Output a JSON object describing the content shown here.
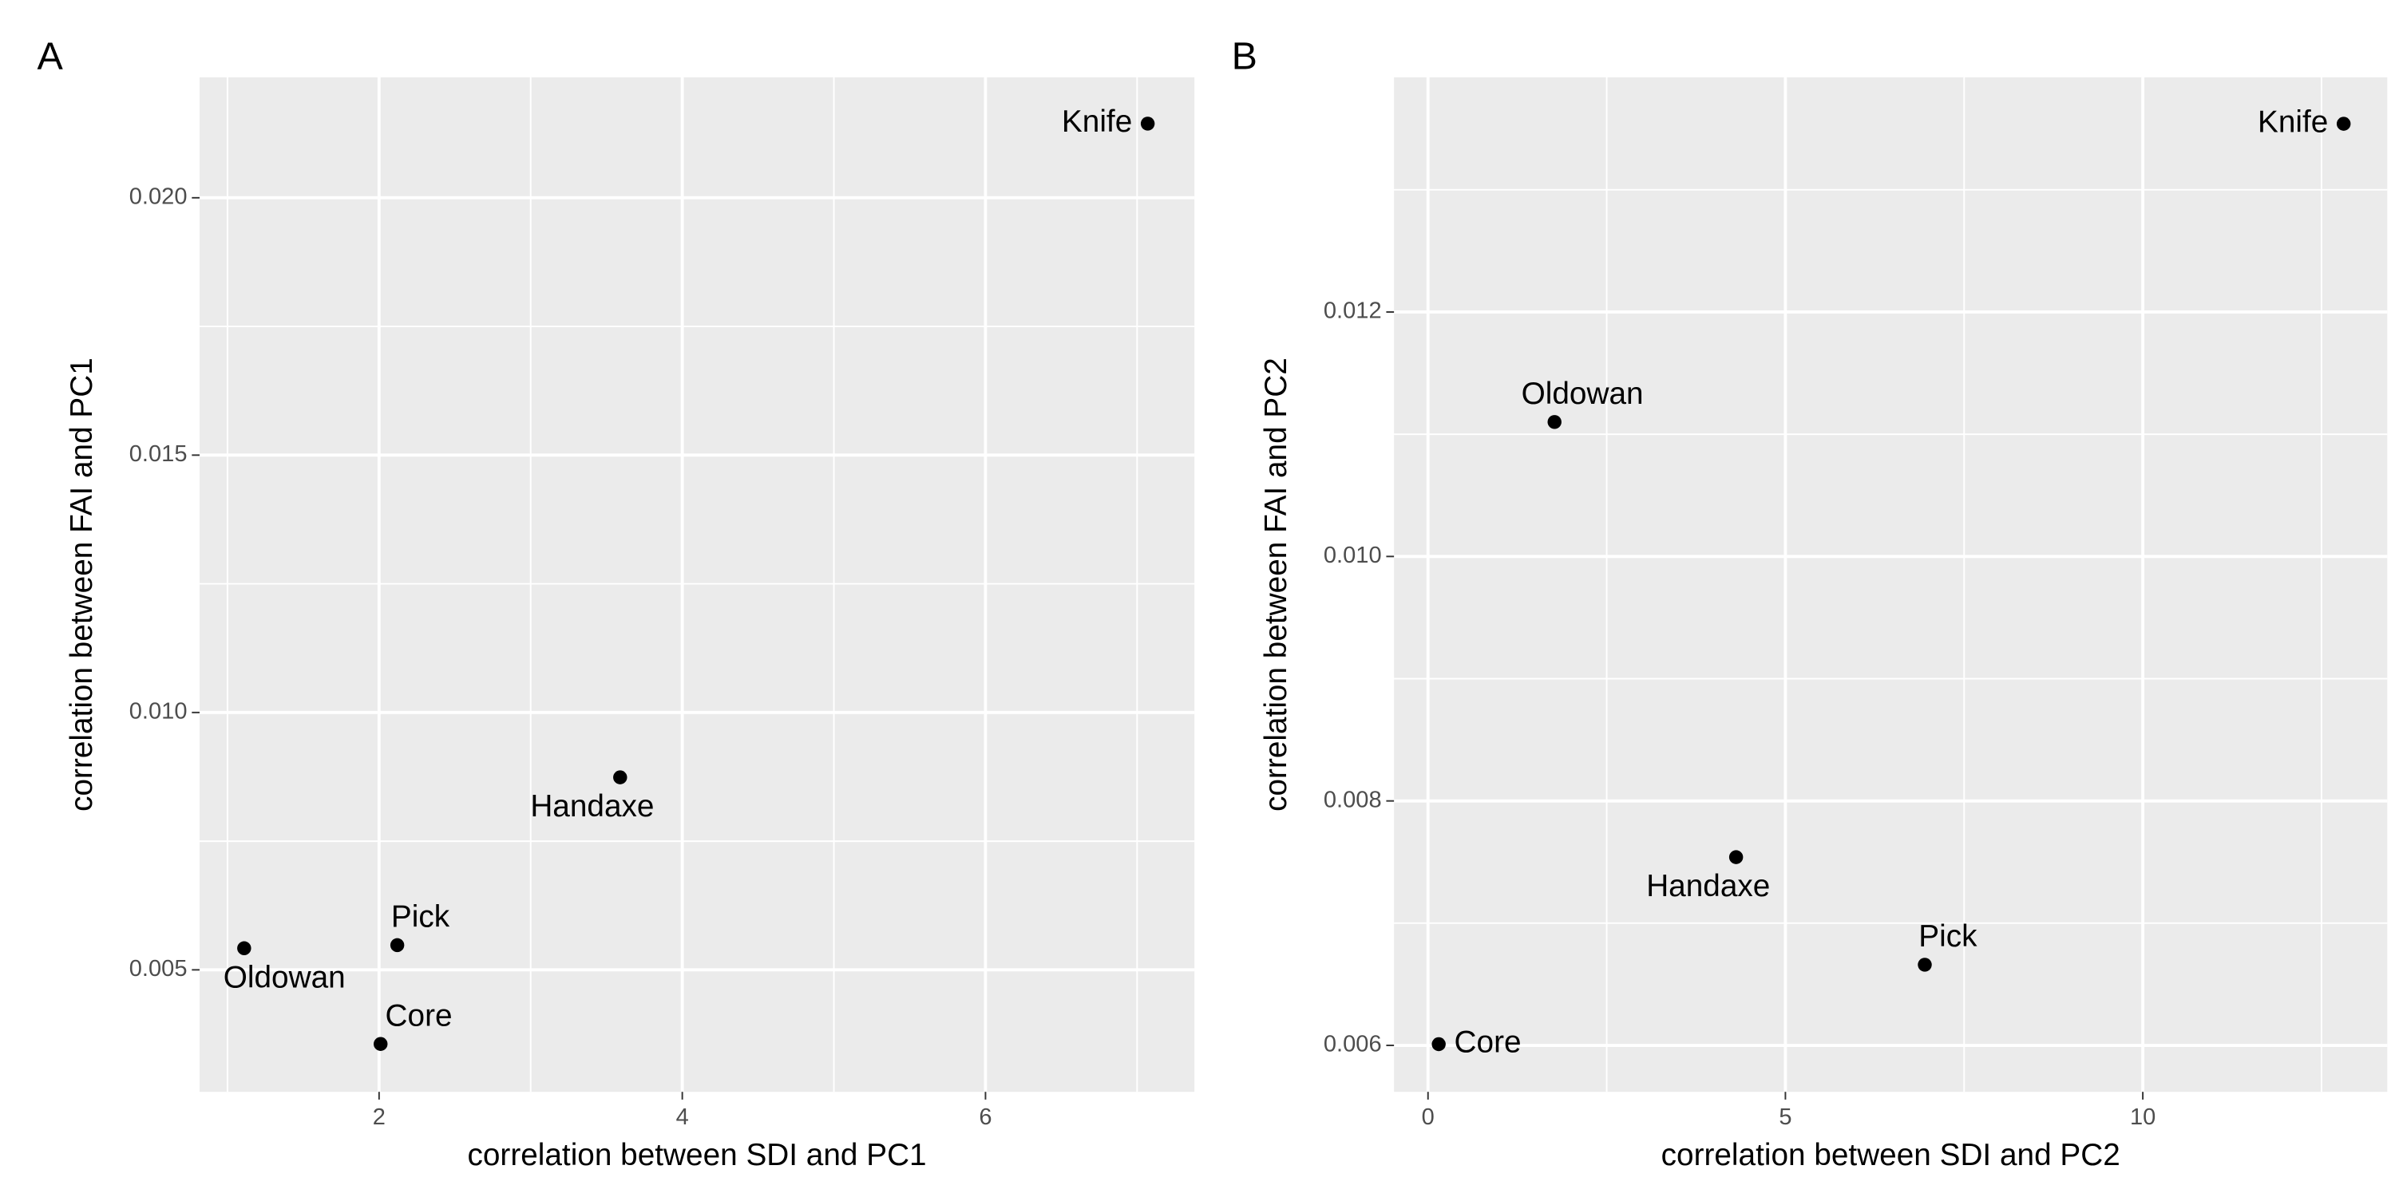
{
  "chart_data": [
    {
      "type": "scatter",
      "tag": "A",
      "x_label": "correlation between SDI and PC1",
      "y_label": "correlation between FAI and PC1",
      "labels": [
        "Knife",
        "Handaxe",
        "Pick",
        "Oldowan",
        "Core"
      ],
      "x": [
        7.07,
        3.59,
        2.12,
        1.11,
        2.01
      ],
      "values": [
        0.02144,
        0.00874,
        0.00548,
        0.00542,
        0.00356
      ],
      "color": "#000000",
      "xlim": [
        0.816,
        7.378
      ],
      "xticks": [
        2,
        4,
        6
      ],
      "ylim": [
        0.00263,
        0.02234
      ],
      "yticks": [
        0.005,
        {
          "value": 0.01,
          "label": "0.010"
        },
        0.015,
        {
          "value": 0.02,
          "label": "0.020"
        }
      ],
      "grid": true
    },
    {
      "type": "scatter",
      "tag": "B",
      "x_label": "correlation between SDI and PC2",
      "y_label": "correlation between FAI and PC2",
      "labels": [
        "Knife",
        "Oldowan",
        "Handaxe",
        "Pick",
        "Core"
      ],
      "x": [
        12.81,
        1.77,
        4.31,
        6.95,
        0.15
      ],
      "values": [
        0.01354,
        0.0111,
        0.00754,
        0.00666,
        0.00601
      ],
      "color": "#000000",
      "xlim": [
        -0.476,
        13.42
      ],
      "xticks": [
        0,
        5,
        10
      ],
      "ylim": [
        0.00562,
        0.01392
      ],
      "yticks": [
        0.006,
        0.008,
        {
          "value": 0.01,
          "label": "0.010"
        },
        0.012
      ],
      "grid": true
    }
  ]
}
